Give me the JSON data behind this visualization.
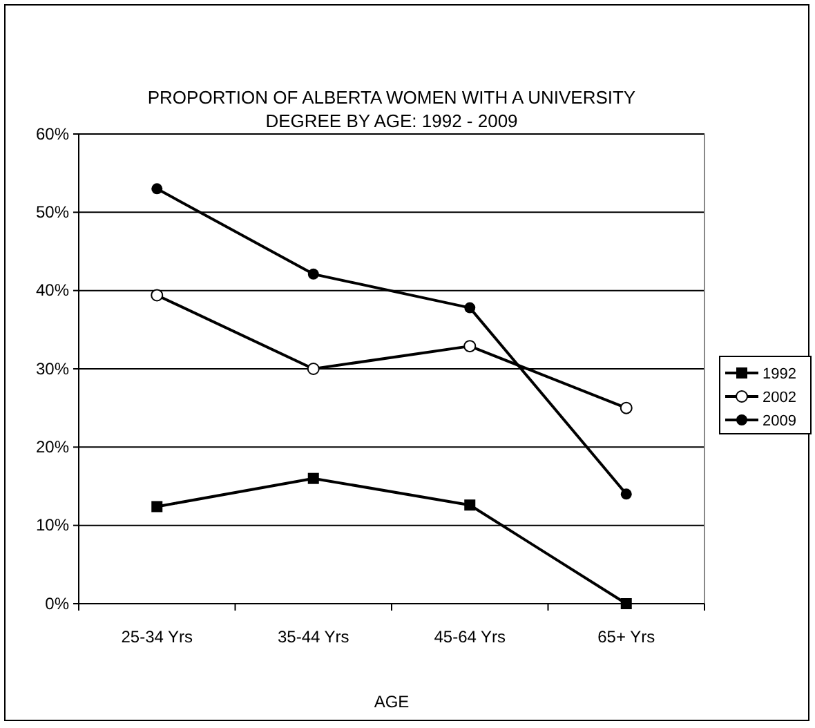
{
  "chart_data": {
    "type": "line",
    "title": "PROPORTION OF ALBERTA WOMEN WITH A UNIVERSITY DEGREE BY AGE: 1992 - 2009",
    "xlabel": "AGE",
    "categories": [
      "25-34 Yrs",
      "35-44 Yrs",
      "45-64 Yrs",
      "65+ Yrs"
    ],
    "series": [
      {
        "name": "1992",
        "color": "#000000",
        "marker": "square",
        "values": [
          12.4,
          16.0,
          12.6,
          0
        ]
      },
      {
        "name": "2002",
        "color": "#000000",
        "marker": "circle-open",
        "values": [
          39.4,
          30.0,
          32.9,
          25.0
        ]
      },
      {
        "name": "2009",
        "color": "#000000",
        "marker": "circle",
        "values": [
          53.0,
          42.1,
          37.8,
          14.0
        ]
      }
    ],
    "ylim": [
      0,
      60
    ],
    "yticks": [
      {
        "value": 0,
        "label": "0%"
      },
      {
        "value": 10,
        "label": "10%"
      },
      {
        "value": 20,
        "label": "20%"
      },
      {
        "value": 30,
        "label": "30%"
      },
      {
        "value": 40,
        "label": "40%"
      },
      {
        "value": 50,
        "label": "50%"
      },
      {
        "value": 60,
        "label": "60%"
      }
    ],
    "grid": "y",
    "legend": "right"
  }
}
